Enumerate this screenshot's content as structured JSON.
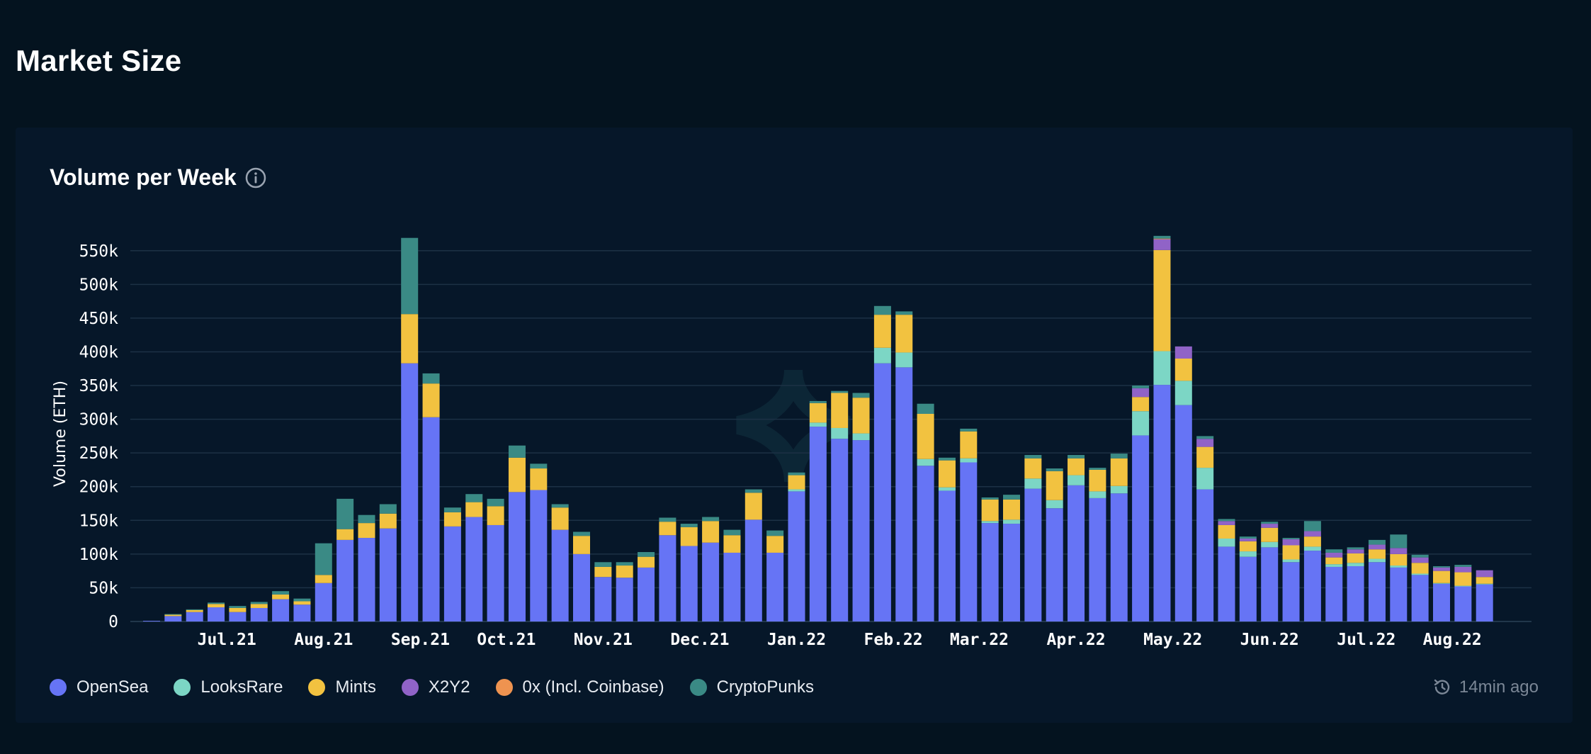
{
  "page": {
    "title": "Market Size"
  },
  "card": {
    "title": "Volume per Week",
    "info_icon": "info-icon"
  },
  "updated": {
    "icon": "refresh-clock-icon",
    "text": "14min ago"
  },
  "colors": {
    "background": "#04131f",
    "card": "#061729",
    "gridline": "#1c3145",
    "axis_text": "#ffffff"
  },
  "chart_data": {
    "type": "bar",
    "stacked": true,
    "title": "Volume per Week",
    "ylabel": "Volume (ETH)",
    "xlabel": "",
    "ylim": [
      0,
      575000
    ],
    "yticks": [
      0,
      50000,
      100000,
      150000,
      200000,
      250000,
      300000,
      350000,
      400000,
      450000,
      500000,
      550000
    ],
    "ytick_labels": [
      "0",
      "50k",
      "100k",
      "150k",
      "200k",
      "250k",
      "300k",
      "350k",
      "400k",
      "450k",
      "500k",
      "550k"
    ],
    "grid": true,
    "legend_position": "bottom-left",
    "x_month_labels": [
      {
        "label": "Jul.21",
        "index": 3.5
      },
      {
        "label": "Aug.21",
        "index": 8
      },
      {
        "label": "Sep.21",
        "index": 12.5
      },
      {
        "label": "Oct.21",
        "index": 16.5
      },
      {
        "label": "Nov.21",
        "index": 21
      },
      {
        "label": "Dec.21",
        "index": 25.5
      },
      {
        "label": "Jan.22",
        "index": 30
      },
      {
        "label": "Feb.22",
        "index": 34.5
      },
      {
        "label": "Mar.22",
        "index": 38.5
      },
      {
        "label": "Apr.22",
        "index": 43
      },
      {
        "label": "May.22",
        "index": 47.5
      },
      {
        "label": "Jun.22",
        "index": 52
      },
      {
        "label": "Jul.22",
        "index": 56.5
      },
      {
        "label": "Aug.22",
        "index": 60.5
      }
    ],
    "series": [
      {
        "name": "OpenSea",
        "color": "#6674f5",
        "values": [
          1000,
          8000,
          14000,
          21000,
          14000,
          20000,
          33000,
          25000,
          57000,
          121000,
          124000,
          138000,
          383000,
          303000,
          141000,
          155000,
          143000,
          192000,
          195000,
          136000,
          100000,
          66000,
          65000,
          80000,
          128000,
          112000,
          117000,
          102000,
          151000,
          102000,
          193000,
          289000,
          271000,
          269000,
          383000,
          377000,
          231000,
          194000,
          236000,
          146000,
          145000,
          197000,
          168000,
          202000,
          183000,
          190000,
          276000,
          351000,
          321000,
          196000,
          111000,
          96000,
          110000,
          88000,
          105000,
          81000,
          82000,
          88000,
          80000,
          69000,
          56000,
          52000,
          55000
        ]
      },
      {
        "name": "LooksRare",
        "color": "#7cd6c5",
        "values": [
          0,
          0,
          0,
          0,
          0,
          0,
          0,
          0,
          0,
          0,
          0,
          0,
          0,
          0,
          0,
          0,
          0,
          0,
          0,
          0,
          0,
          0,
          0,
          0,
          0,
          0,
          0,
          0,
          0,
          0,
          3000,
          6000,
          16000,
          10000,
          23000,
          22000,
          10000,
          5000,
          6000,
          3000,
          6000,
          15000,
          12000,
          15000,
          10000,
          11000,
          36000,
          50000,
          36000,
          32000,
          12000,
          8000,
          8000,
          4000,
          6000,
          4000,
          5000,
          5000,
          3000,
          2000,
          1000,
          1000,
          1000
        ]
      },
      {
        "name": "Mints",
        "color": "#f2c240",
        "values": [
          0,
          2000,
          3000,
          5000,
          6000,
          6000,
          7000,
          5000,
          12000,
          16000,
          22000,
          22000,
          73000,
          50000,
          21000,
          22000,
          28000,
          51000,
          32000,
          33000,
          27000,
          15000,
          18000,
          16000,
          20000,
          28000,
          32000,
          26000,
          40000,
          25000,
          21000,
          29000,
          52000,
          53000,
          49000,
          56000,
          67000,
          40000,
          40000,
          32000,
          30000,
          30000,
          43000,
          25000,
          32000,
          41000,
          21000,
          150000,
          33000,
          31000,
          20000,
          15000,
          21000,
          21000,
          15000,
          10000,
          14000,
          14000,
          17000,
          16000,
          18000,
          20000,
          10000
        ]
      },
      {
        "name": "X2Y2",
        "color": "#9063c7",
        "values": [
          0,
          0,
          0,
          0,
          0,
          0,
          0,
          0,
          0,
          0,
          0,
          0,
          0,
          0,
          0,
          0,
          0,
          0,
          0,
          0,
          0,
          0,
          0,
          0,
          0,
          0,
          0,
          0,
          0,
          0,
          0,
          0,
          0,
          0,
          0,
          0,
          0,
          0,
          0,
          0,
          0,
          0,
          0,
          0,
          0,
          0,
          13000,
          16000,
          18000,
          12000,
          6000,
          4000,
          6000,
          9000,
          8000,
          7000,
          6000,
          7000,
          9000,
          8000,
          5000,
          8000,
          10000
        ]
      },
      {
        "name": "0x (Incl. Coinbase)",
        "color": "#ee9350",
        "values": [
          0,
          0,
          0,
          0,
          0,
          0,
          0,
          0,
          0,
          0,
          0,
          0,
          0,
          0,
          0,
          0,
          0,
          0,
          0,
          0,
          0,
          0,
          0,
          0,
          0,
          0,
          0,
          0,
          0,
          0,
          0,
          0,
          0,
          0,
          0,
          0,
          0,
          0,
          0,
          0,
          0,
          0,
          0,
          0,
          0,
          0,
          0,
          1000,
          0,
          0,
          0,
          0,
          0,
          0,
          0,
          0,
          0,
          0,
          0,
          0,
          0,
          0,
          0
        ]
      },
      {
        "name": "CryptoPunks",
        "color": "#3a8a85",
        "values": [
          0,
          1000,
          1000,
          2000,
          3000,
          3000,
          5000,
          4000,
          47000,
          45000,
          12000,
          14000,
          113000,
          15000,
          7000,
          12000,
          11000,
          18000,
          7000,
          5000,
          6000,
          7000,
          5000,
          7000,
          6000,
          5000,
          6000,
          8000,
          5000,
          8000,
          4000,
          3000,
          3000,
          7000,
          13000,
          5000,
          15000,
          4000,
          4000,
          3000,
          7000,
          5000,
          4000,
          5000,
          3000,
          7000,
          4000,
          4000,
          0,
          4000,
          3000,
          3000,
          3000,
          2000,
          15000,
          5000,
          3000,
          7000,
          20000,
          4000,
          2000,
          3000,
          0
        ]
      }
    ]
  }
}
